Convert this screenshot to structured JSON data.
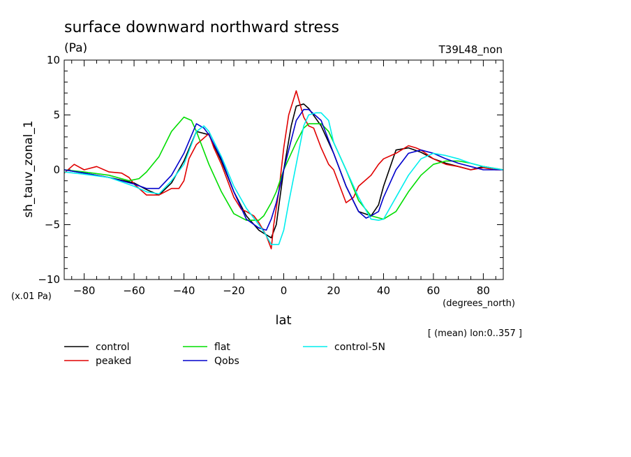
{
  "chart_data": {
    "type": "line",
    "title": "surface downward northward stress",
    "units": "(Pa)",
    "run_label": "T39L48_non",
    "ylabel": "sh_tauv_zonal_1",
    "yscale_note": "(x.01 Pa)",
    "xlabel": "lat",
    "xunits": "(degrees_north)",
    "mean_note": "[ (mean) lon:0..357 ]",
    "xlim": [
      -88,
      88
    ],
    "ylim": [
      -10,
      10
    ],
    "xticks": [
      -80,
      -60,
      -40,
      -20,
      0,
      20,
      40,
      60,
      80
    ],
    "xtick_labels": [
      "−80",
      "−60",
      "−40",
      "−20",
      "0",
      "20",
      "40",
      "60",
      "80"
    ],
    "yticks": [
      -10,
      -5,
      0,
      5,
      10
    ],
    "ytick_labels": [
      "−10",
      "−5",
      "0",
      "5",
      "10"
    ],
    "series": [
      {
        "name": "control",
        "color": "#000000",
        "x": [
          -88,
          -80,
          -70,
          -60,
          -55,
          -50,
          -45,
          -40,
          -35,
          -30,
          -25,
          -20,
          -15,
          -10,
          -5,
          -3,
          0,
          3,
          5,
          8,
          10,
          15,
          20,
          25,
          30,
          35,
          38,
          40,
          45,
          50,
          55,
          60,
          65,
          70,
          75,
          80,
          88
        ],
        "y": [
          0,
          -0.3,
          -0.7,
          -1.2,
          -1.8,
          -2.3,
          -1.2,
          0.8,
          3.5,
          3.2,
          0.8,
          -2,
          -4.2,
          -5.5,
          -6.2,
          -5,
          0,
          4,
          5.8,
          6,
          5.6,
          4,
          1.5,
          -1.5,
          -3.8,
          -4.2,
          -3.2,
          -1.5,
          1.8,
          2,
          1.6,
          1,
          0.6,
          0.3,
          0,
          0.3,
          0
        ]
      },
      {
        "name": "peaked",
        "color": "#e00000",
        "x": [
          -88,
          -84,
          -80,
          -75,
          -70,
          -65,
          -62,
          -60,
          -55,
          -50,
          -45,
          -42,
          -40,
          -38,
          -35,
          -30,
          -28,
          -25,
          -20,
          -17,
          -15,
          -12,
          -10,
          -7,
          -5,
          -4,
          -2,
          0,
          2,
          5,
          8,
          10,
          12,
          15,
          18,
          20,
          25,
          28,
          30,
          35,
          38,
          40,
          45,
          50,
          53,
          55,
          60,
          65,
          70,
          75,
          80,
          85,
          88
        ],
        "y": [
          -0.3,
          0.5,
          0,
          0.3,
          -0.2,
          -0.3,
          -0.7,
          -1.3,
          -2.3,
          -2.3,
          -1.7,
          -1.7,
          -1,
          1,
          2.3,
          3.3,
          2,
          0.5,
          -2.5,
          -3.6,
          -3.8,
          -4.2,
          -4.8,
          -6,
          -7.2,
          -5,
          -2,
          2,
          5,
          7.2,
          4.8,
          4,
          3.8,
          2,
          0.5,
          0,
          -3,
          -2.5,
          -1.5,
          -0.5,
          0.5,
          1,
          1.5,
          2.2,
          2,
          1.8,
          1,
          0.5,
          0.3,
          0,
          0.2,
          0,
          0
        ]
      },
      {
        "name": "flat",
        "color": "#00dd00",
        "x": [
          -88,
          -80,
          -70,
          -62,
          -58,
          -55,
          -50,
          -45,
          -40,
          -37,
          -35,
          -30,
          -25,
          -20,
          -15,
          -10,
          -8,
          -5,
          -3,
          0,
          3,
          5,
          8,
          10,
          15,
          18,
          20,
          25,
          30,
          35,
          40,
          45,
          50,
          55,
          60,
          65,
          70,
          75,
          80,
          88
        ],
        "y": [
          0,
          -0.2,
          -0.5,
          -1,
          -0.8,
          -0.2,
          1.2,
          3.5,
          4.8,
          4.5,
          3.5,
          0.5,
          -2,
          -4,
          -4.6,
          -4.6,
          -4.2,
          -3,
          -2,
          0,
          1.5,
          2.5,
          3.8,
          4.2,
          4.2,
          3.5,
          2.5,
          0,
          -2.8,
          -4.2,
          -4.5,
          -3.8,
          -2,
          -0.5,
          0.5,
          0.8,
          0.8,
          0.6,
          0.3,
          0
        ]
      },
      {
        "name": "Qobs",
        "color": "#0000cc",
        "x": [
          -88,
          -80,
          -70,
          -60,
          -55,
          -50,
          -45,
          -40,
          -35,
          -32,
          -30,
          -25,
          -20,
          -15,
          -10,
          -7,
          -5,
          -3,
          0,
          3,
          5,
          8,
          10,
          15,
          20,
          25,
          30,
          33,
          35,
          38,
          40,
          45,
          50,
          55,
          60,
          65,
          70,
          75,
          80,
          88
        ],
        "y": [
          0,
          -0.3,
          -0.7,
          -1.3,
          -1.7,
          -1.7,
          -0.5,
          1.5,
          4.2,
          3.8,
          3.2,
          1,
          -2,
          -4.5,
          -5.3,
          -5.5,
          -4.5,
          -3,
          0,
          2.7,
          4.5,
          5.5,
          5.5,
          4.5,
          1.5,
          -1.5,
          -3.8,
          -4.4,
          -4.2,
          -3.8,
          -2.5,
          0,
          1.5,
          1.8,
          1.5,
          1,
          0.6,
          0.3,
          0,
          0
        ]
      },
      {
        "name": "control-5N",
        "color": "#00eeee",
        "x": [
          -88,
          -80,
          -70,
          -60,
          -55,
          -50,
          -45,
          -40,
          -35,
          -32,
          -30,
          -25,
          -20,
          -15,
          -10,
          -7,
          -5,
          -2,
          0,
          2,
          5,
          8,
          10,
          13,
          15,
          18,
          20,
          25,
          30,
          35,
          38,
          40,
          45,
          50,
          55,
          60,
          65,
          70,
          75,
          80,
          88
        ],
        "y": [
          -0.2,
          -0.4,
          -0.7,
          -1.5,
          -2,
          -2.2,
          -1,
          0.5,
          3.5,
          4,
          3.5,
          1.2,
          -1.5,
          -3.5,
          -5,
          -6,
          -6.8,
          -6.8,
          -5.5,
          -3,
          0.5,
          4,
          5,
          5.2,
          5.2,
          4.5,
          2.5,
          0,
          -2.5,
          -4.5,
          -4.6,
          -4.5,
          -2.5,
          -0.5,
          1,
          1.5,
          1.3,
          1,
          0.6,
          0.3,
          0
        ]
      }
    ]
  }
}
